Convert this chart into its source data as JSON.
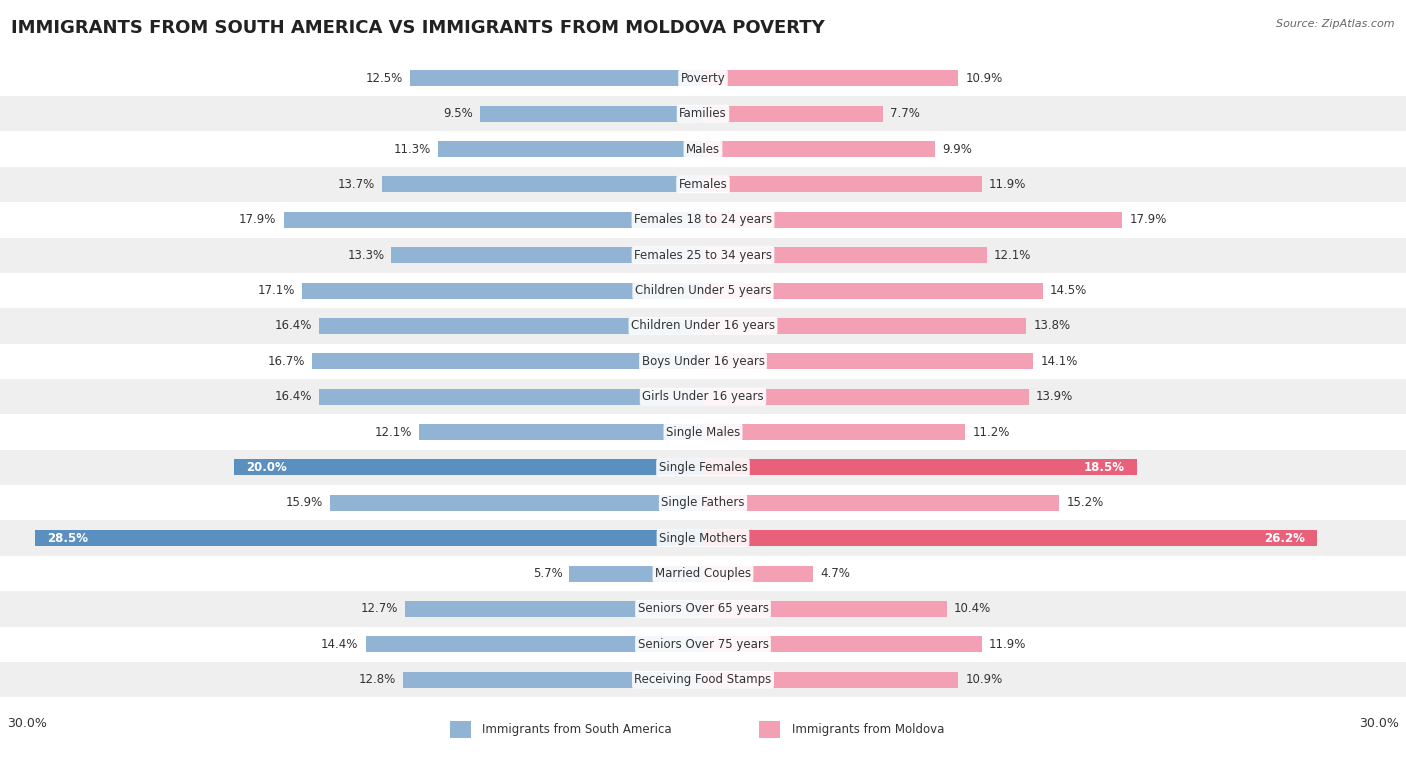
{
  "title": "IMMIGRANTS FROM SOUTH AMERICA VS IMMIGRANTS FROM MOLDOVA POVERTY",
  "source": "Source: ZipAtlas.com",
  "categories": [
    "Poverty",
    "Families",
    "Males",
    "Females",
    "Females 18 to 24 years",
    "Females 25 to 34 years",
    "Children Under 5 years",
    "Children Under 16 years",
    "Boys Under 16 years",
    "Girls Under 16 years",
    "Single Males",
    "Single Females",
    "Single Fathers",
    "Single Mothers",
    "Married Couples",
    "Seniors Over 65 years",
    "Seniors Over 75 years",
    "Receiving Food Stamps"
  ],
  "left_values": [
    12.5,
    9.5,
    11.3,
    13.7,
    17.9,
    13.3,
    17.1,
    16.4,
    16.7,
    16.4,
    12.1,
    20.0,
    15.9,
    28.5,
    5.7,
    12.7,
    14.4,
    12.8
  ],
  "right_values": [
    10.9,
    7.7,
    9.9,
    11.9,
    17.9,
    12.1,
    14.5,
    13.8,
    14.1,
    13.9,
    11.2,
    18.5,
    15.2,
    26.2,
    4.7,
    10.4,
    11.9,
    10.9
  ],
  "left_color": "#92b4d4",
  "right_color": "#f4a0b4",
  "left_color_highlight": "#5a8fc0",
  "right_color_highlight": "#e8607a",
  "highlight_rows": [
    11,
    13
  ],
  "row_bg_even": "#ffffff",
  "row_bg_odd": "#efefef",
  "axis_limit": 30.0,
  "left_label": "Immigrants from South America",
  "right_label": "Immigrants from Moldova",
  "title_fontsize": 13,
  "value_fontsize": 8.5,
  "category_fontsize": 8.5
}
